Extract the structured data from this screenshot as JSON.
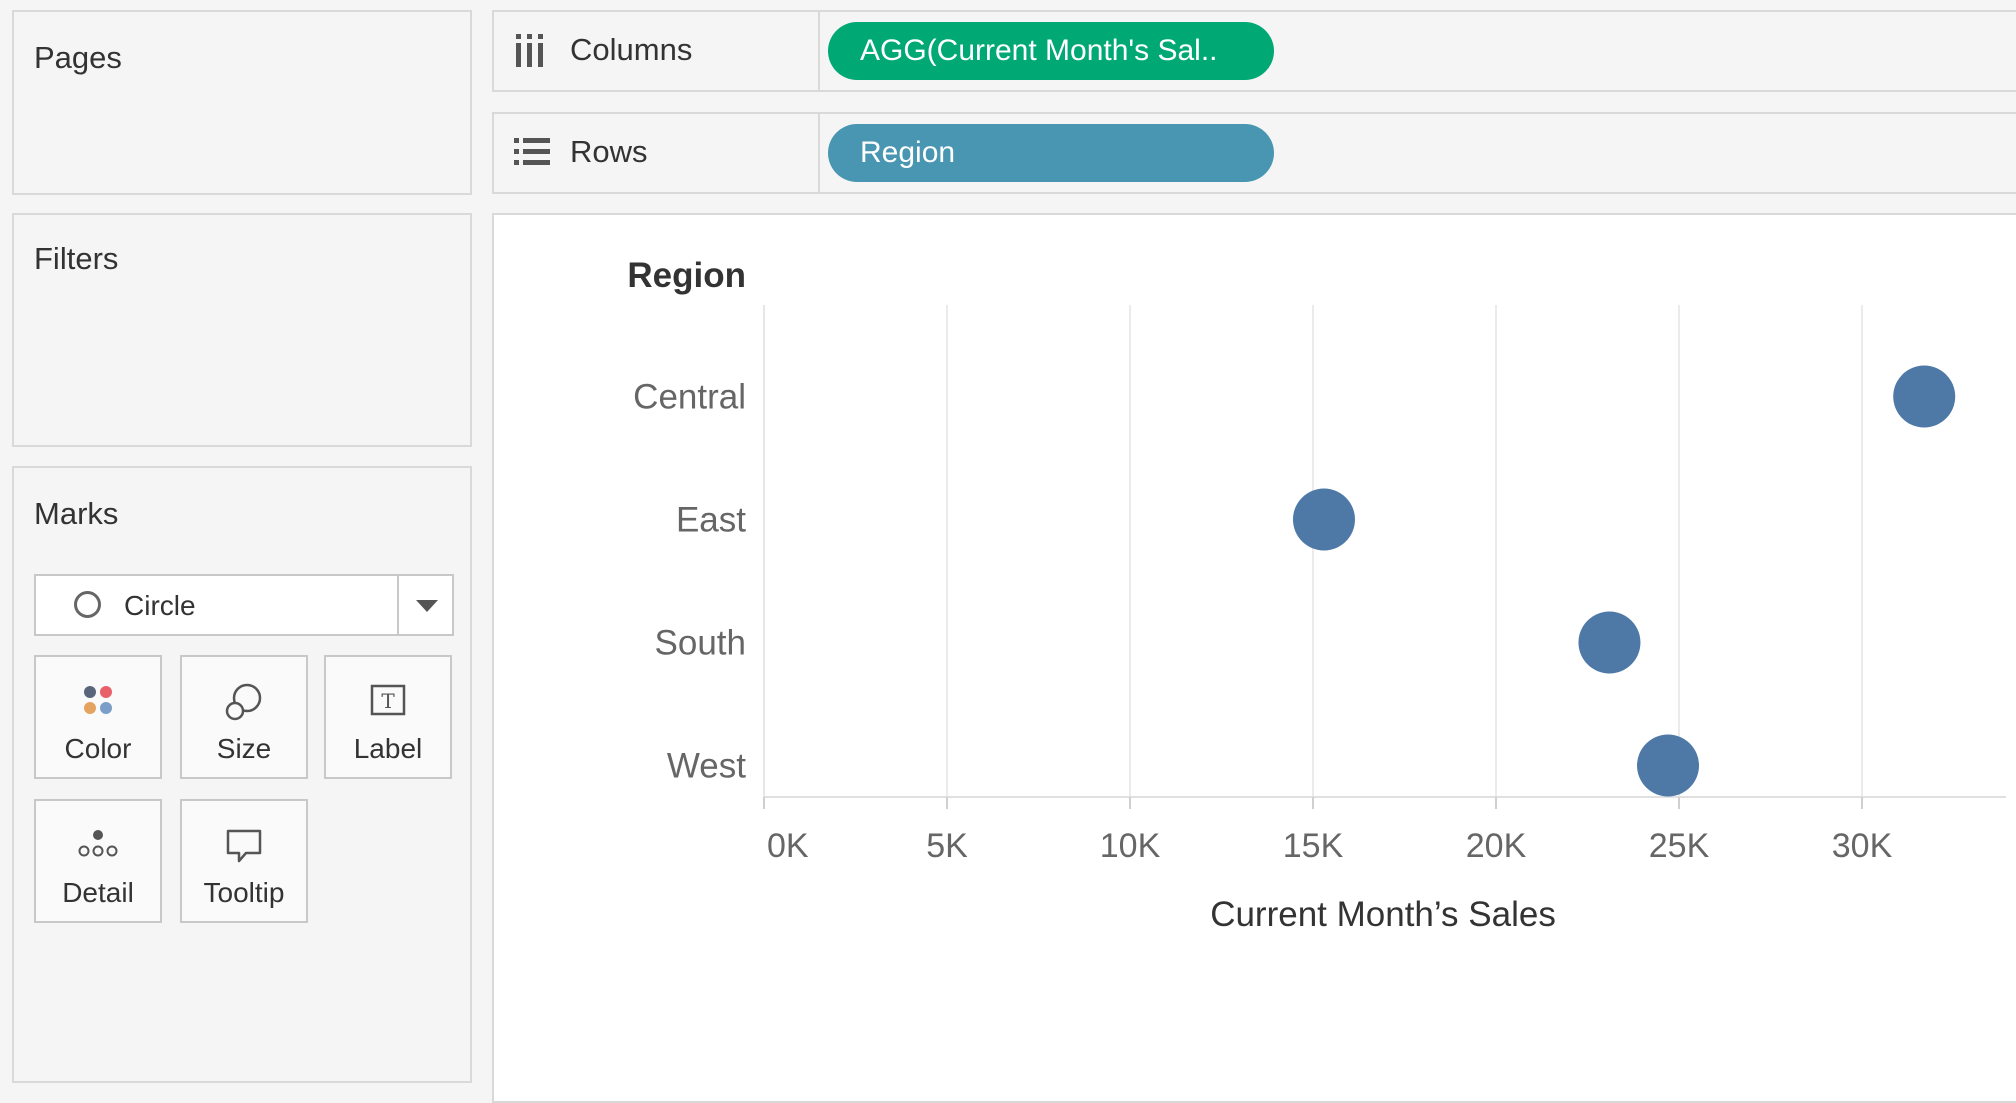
{
  "cards": {
    "pages": "Pages",
    "filters": "Filters",
    "marks": "Marks"
  },
  "marks_card": {
    "mark_type": "Circle",
    "buttons": [
      {
        "label": "Color",
        "icon": "color-dots-icon"
      },
      {
        "label": "Size",
        "icon": "size-circles-icon"
      },
      {
        "label": "Label",
        "icon": "label-text-icon"
      },
      {
        "label": "Detail",
        "icon": "detail-dots-icon"
      },
      {
        "label": "Tooltip",
        "icon": "tooltip-bubble-icon"
      }
    ]
  },
  "shelves": {
    "columns": {
      "label": "Columns",
      "pill": "AGG(Current Month's Sal..",
      "pill_color": "#00a974"
    },
    "rows": {
      "label": "Rows",
      "pill": "Region",
      "pill_color": "#4996b2"
    }
  },
  "chart_data": {
    "type": "scatter",
    "row_header": "Region",
    "categories": [
      "Central",
      "East",
      "South",
      "West"
    ],
    "values": [
      31700,
      15300,
      23100,
      24700
    ],
    "xlabel": "Current Month’s Sales",
    "x_ticks": [
      "0K",
      "5K",
      "10K",
      "15K",
      "20K",
      "25K",
      "30K"
    ],
    "x_tick_values": [
      0,
      5000,
      10000,
      15000,
      20000,
      25000,
      30000
    ],
    "grid": true,
    "mark_color": "#4e79a7"
  }
}
